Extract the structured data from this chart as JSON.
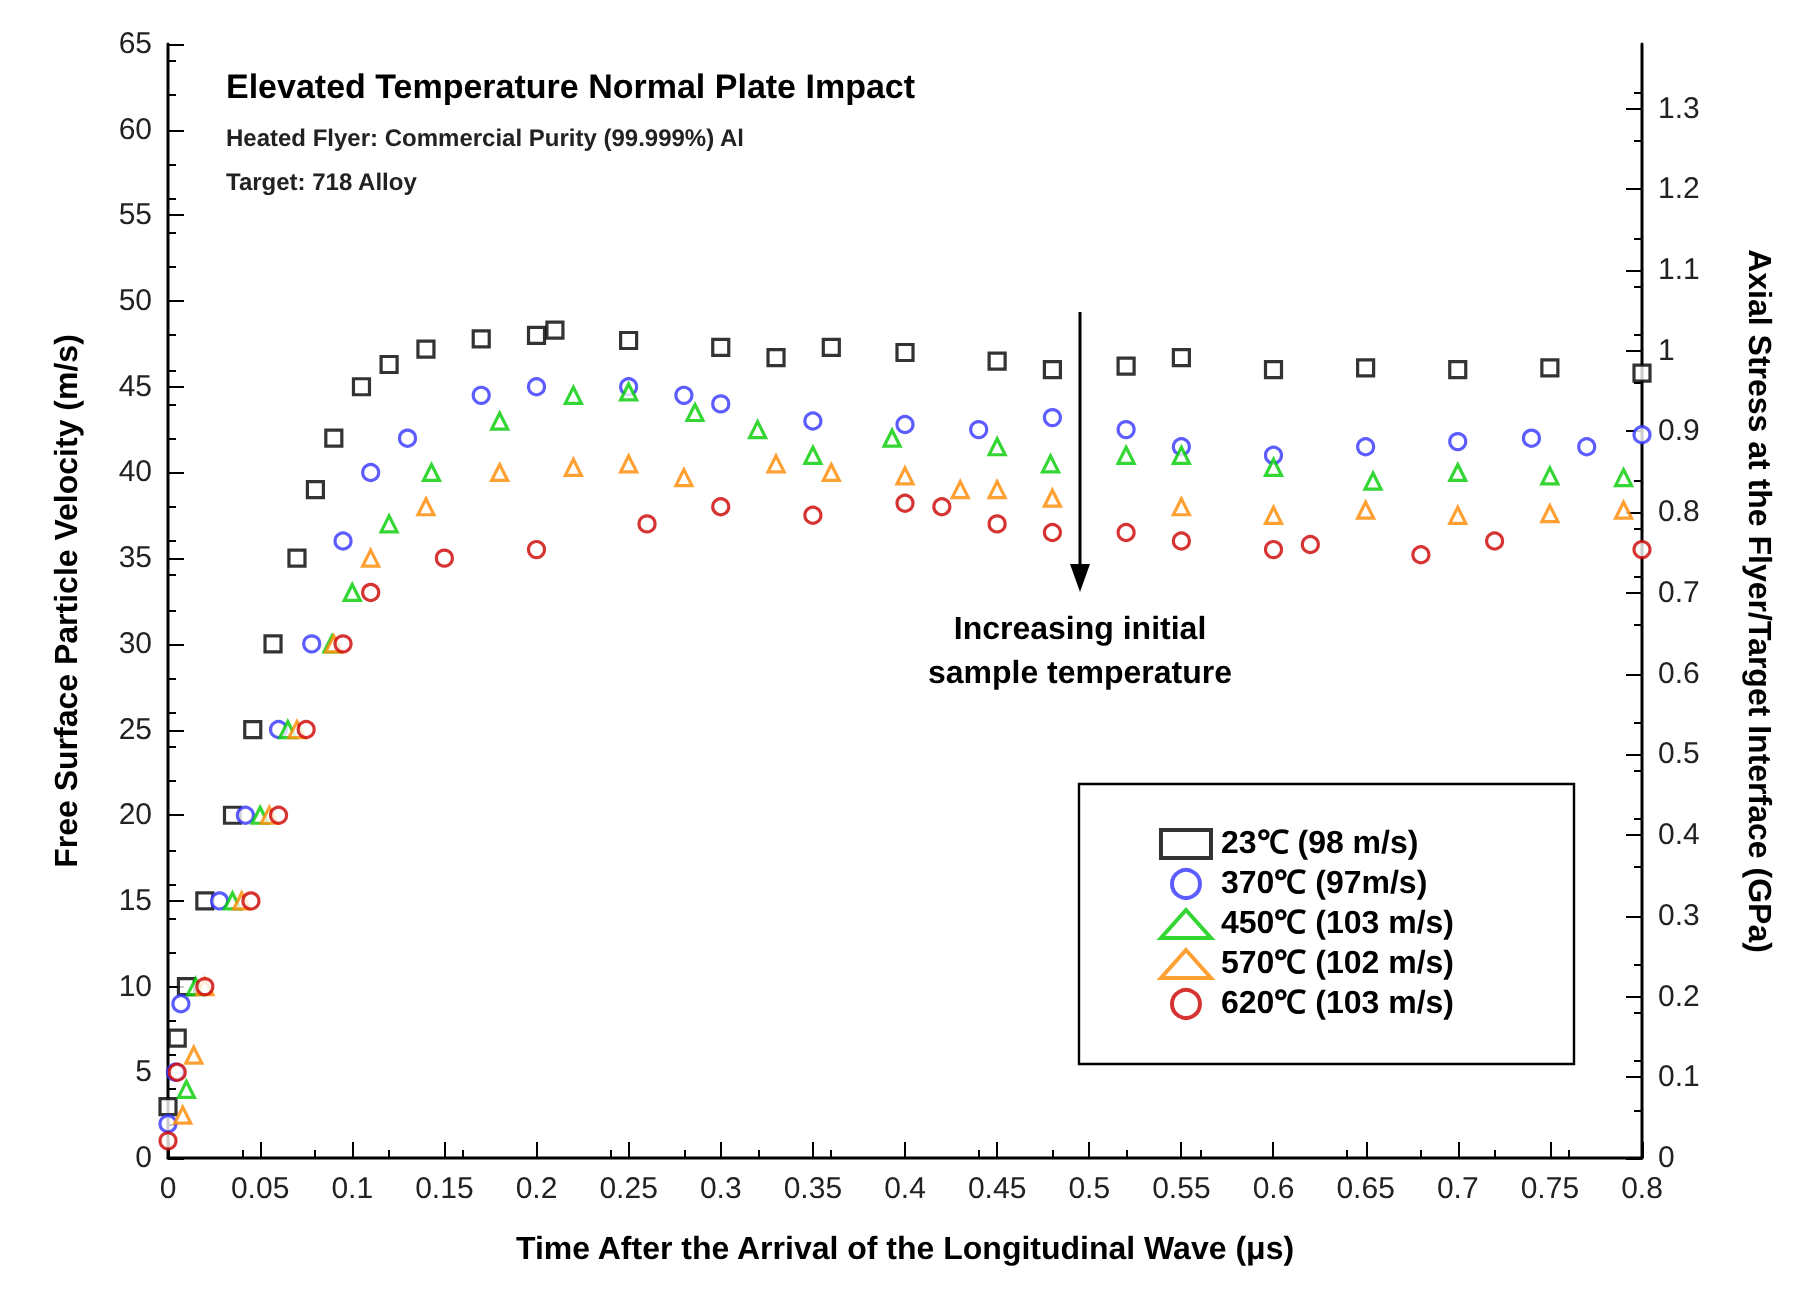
{
  "chart_data": {
    "type": "scatter",
    "title": "Elevated Temperature Normal Plate Impact",
    "subtitle": "Heated Flyer: Commercial Purity (99.999%) Al\nTarget: 718 Alloy",
    "xlabel": "Time After the Arrival of the Longitudinal Wave (μs)",
    "ylabel": "Free Surface Particle Velocity (m/s)",
    "y2label": "Axial Stress at the Flyer/Target Interface (GPa)",
    "xlim": [
      0,
      0.8
    ],
    "xticks": [
      0,
      0.05,
      0.1,
      0.15,
      0.2,
      0.25,
      0.3,
      0.35,
      0.4,
      0.45,
      0.5,
      0.55,
      0.6,
      0.65,
      0.7,
      0.75,
      0.8
    ],
    "ylim": [
      0,
      65
    ],
    "yticks": [
      0,
      5,
      10,
      15,
      20,
      25,
      30,
      35,
      40,
      45,
      50,
      55,
      60,
      65
    ],
    "y2lim": [
      0,
      1.38
    ],
    "y2ticks": [
      0,
      0.1,
      0.2,
      0.3,
      0.4,
      0.5,
      0.6,
      0.7,
      0.8,
      0.9,
      1,
      1.1,
      1.2,
      1.3
    ],
    "grid": false,
    "legend": "bottom right",
    "annotations": [
      "Increasing initial\nsample temperature"
    ],
    "series": [
      {
        "name": "23℃ (98 m/s)",
        "color": "#000000",
        "marker": "square",
        "x": [
          0,
          0.005,
          0.01,
          0.02,
          0.035,
          0.046,
          0.057,
          0.07,
          0.08,
          0.09,
          0.105,
          0.12,
          0.14,
          0.17,
          0.2,
          0.21,
          0.25,
          0.3,
          0.33,
          0.36,
          0.4,
          0.45,
          0.48,
          0.52,
          0.55,
          0.6,
          0.65,
          0.7,
          0.75,
          0.8
        ],
        "values": [
          3,
          7,
          10,
          15,
          20,
          25,
          30,
          35,
          39,
          42,
          45,
          46.3,
          47.2,
          47.8,
          48,
          48.3,
          47.7,
          47.3,
          46.7,
          47.3,
          47,
          46.5,
          46,
          46.2,
          46.7,
          46,
          46.1,
          46,
          46.1,
          45.8
        ]
      },
      {
        "name": "370℃ (97m/s)",
        "color": "#3333ff",
        "marker": "circle",
        "x": [
          0,
          0.004,
          0.007,
          0.028,
          0.042,
          0.06,
          0.078,
          0.095,
          0.11,
          0.13,
          0.17,
          0.2,
          0.25,
          0.28,
          0.3,
          0.35,
          0.4,
          0.44,
          0.48,
          0.52,
          0.55,
          0.6,
          0.65,
          0.7,
          0.74,
          0.77,
          0.8
        ],
        "values": [
          2,
          5,
          9,
          15,
          20,
          25,
          30,
          36,
          40,
          42,
          44.5,
          45,
          45,
          44.5,
          44,
          43,
          42.8,
          42.5,
          43.2,
          42.5,
          41.5,
          41,
          41.5,
          41.8,
          42,
          41.5,
          42.2
        ]
      },
      {
        "name": "450℃ (103 m/s)",
        "color": "#00cc00",
        "marker": "triangle",
        "x": [
          0.01,
          0.015,
          0.035,
          0.05,
          0.065,
          0.089,
          0.1,
          0.12,
          0.143,
          0.18,
          0.22,
          0.25,
          0.286,
          0.32,
          0.35,
          0.393,
          0.45,
          0.479,
          0.52,
          0.55,
          0.6,
          0.654,
          0.7,
          0.75,
          0.79
        ],
        "values": [
          4,
          10,
          15,
          20,
          25,
          30,
          33,
          37,
          40,
          43,
          44.5,
          44.7,
          43.5,
          42.5,
          41,
          42,
          41.5,
          40.5,
          41,
          41,
          40.3,
          39.5,
          40,
          39.8,
          39.7
        ]
      },
      {
        "name": "570℃ (102 m/s)",
        "color": "#ff8800",
        "marker": "triangle",
        "x": [
          0.008,
          0.014,
          0.02,
          0.04,
          0.055,
          0.07,
          0.09,
          0.11,
          0.14,
          0.18,
          0.22,
          0.25,
          0.28,
          0.33,
          0.36,
          0.4,
          0.43,
          0.45,
          0.48,
          0.55,
          0.6,
          0.65,
          0.7,
          0.75,
          0.79
        ],
        "values": [
          2.5,
          6,
          10,
          15,
          20,
          25,
          30,
          35,
          38,
          40,
          40.3,
          40.5,
          39.7,
          40.5,
          40,
          39.8,
          39,
          39,
          38.5,
          38,
          37.5,
          37.8,
          37.5,
          37.6,
          37.8
        ]
      },
      {
        "name": "620℃ (103 m/s)",
        "color": "#cc0000",
        "marker": "circle",
        "x": [
          0,
          0.005,
          0.02,
          0.045,
          0.06,
          0.075,
          0.095,
          0.11,
          0.15,
          0.2,
          0.26,
          0.3,
          0.35,
          0.4,
          0.42,
          0.45,
          0.48,
          0.52,
          0.55,
          0.6,
          0.62,
          0.68,
          0.72,
          0.8
        ],
        "values": [
          1,
          5,
          10,
          15,
          20,
          25,
          30,
          33,
          35,
          35.5,
          37,
          38,
          37.5,
          38.2,
          38,
          37,
          36.5,
          36.5,
          36,
          35.5,
          35.8,
          35.2,
          36,
          35.5
        ]
      }
    ]
  }
}
